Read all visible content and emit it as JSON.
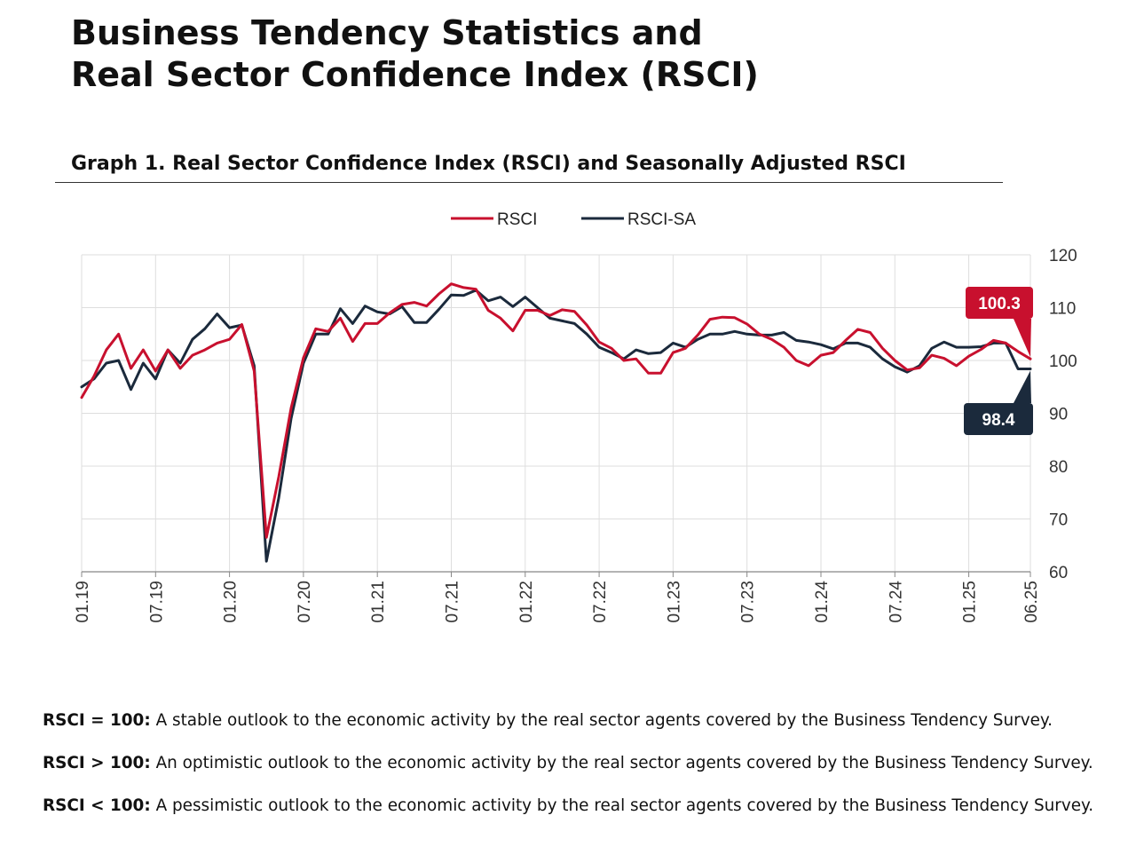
{
  "page": {
    "title_line1": "Business Tendency Statistics and",
    "title_line2": "Real Sector Confidence Index (RSCI)",
    "graph_title": "Graph 1. Real Sector Confidence Index (RSCI) and Seasonally Adjusted RSCI"
  },
  "notes": [
    {
      "label": "RSCI = 100:",
      "text": " A stable outlook to the economic activity by the real sector agents covered by the Business Tendency Survey."
    },
    {
      "label": "RSCI > 100:",
      "text": " An optimistic outlook to the economic activity by the real sector agents covered by the Business Tendency Survey."
    },
    {
      "label": "RSCI < 100:",
      "text": " A pessimistic outlook to the economic activity by the real sector agents covered by the Business Tendency Survey."
    }
  ],
  "colors": {
    "rsci": "#c8102e",
    "rsci_sa": "#1b2a3c",
    "grid": "#dedede",
    "axis": "#888888"
  },
  "chart_data": {
    "type": "line",
    "title": "Graph 1. Real Sector Confidence Index (RSCI) and Seasonally Adjusted RSCI",
    "xlabel": "",
    "ylabel": "",
    "x_start": "01.19",
    "x_end": "06.25",
    "n_points": 78,
    "x_tick_labels": [
      "01.19",
      "07.19",
      "01.20",
      "07.20",
      "01.21",
      "07.21",
      "01.22",
      "07.22",
      "01.23",
      "07.23",
      "01.24",
      "07.24",
      "01.25",
      "06.25"
    ],
    "x_tick_index": [
      0,
      6,
      12,
      18,
      24,
      30,
      36,
      42,
      48,
      54,
      60,
      66,
      72,
      77
    ],
    "ylim": [
      60,
      120
    ],
    "y_ticks": [
      60,
      70,
      80,
      90,
      100,
      110,
      120
    ],
    "grid": true,
    "legend_position": "top-center",
    "series": [
      {
        "name": "RSCI",
        "color": "#c8102e",
        "values": [
          93.0,
          97.0,
          102.0,
          105.0,
          98.5,
          102.0,
          98.0,
          102.0,
          98.5,
          101.0,
          102.0,
          103.3,
          104.0,
          106.8,
          98.0,
          66.5,
          78.0,
          91.0,
          100.5,
          106.0,
          105.5,
          108.0,
          103.6,
          107.0,
          107.0,
          109.0,
          110.6,
          111.0,
          110.3,
          112.6,
          114.5,
          113.8,
          113.5,
          109.5,
          108.0,
          105.6,
          109.5,
          109.5,
          108.5,
          109.6,
          109.3,
          106.7,
          103.5,
          102.3,
          100.0,
          100.3,
          97.6,
          97.6,
          101.5,
          102.3,
          104.8,
          107.8,
          108.2,
          108.1,
          106.9,
          105.0,
          104.0,
          102.5,
          100.0,
          99.0,
          101.0,
          101.5,
          103.8,
          105.9,
          105.3,
          102.3,
          100.0,
          98.2,
          98.6,
          101.0,
          100.4,
          99.0,
          100.8,
          102.1,
          103.8,
          103.3,
          101.7,
          100.3
        ]
      },
      {
        "name": "RSCI-SA",
        "color": "#1b2a3c",
        "values": [
          95.0,
          96.5,
          99.5,
          100.0,
          94.5,
          99.5,
          96.5,
          102.0,
          99.5,
          104.0,
          106.0,
          108.8,
          106.2,
          106.7,
          99.0,
          62.0,
          74.0,
          89.0,
          99.5,
          105.0,
          105.0,
          109.8,
          107.0,
          110.3,
          109.2,
          108.8,
          110.2,
          107.2,
          107.2,
          109.7,
          112.4,
          112.3,
          113.3,
          111.3,
          112.0,
          110.2,
          112.0,
          110.0,
          108.0,
          107.5,
          107.0,
          105.0,
          102.5,
          101.5,
          100.3,
          102.0,
          101.3,
          101.5,
          103.3,
          102.5,
          104.0,
          105.0,
          105.0,
          105.5,
          105.0,
          104.8,
          104.8,
          105.3,
          103.8,
          103.5,
          103.0,
          102.2,
          103.3,
          103.3,
          102.5,
          100.3,
          98.8,
          97.8,
          99.0,
          102.3,
          103.5,
          102.5,
          102.5,
          102.6,
          103.3,
          103.3,
          98.4,
          98.4
        ]
      }
    ],
    "end_labels": [
      {
        "series": "RSCI",
        "text": "100.3"
      },
      {
        "series": "RSCI-SA",
        "text": "98.4"
      }
    ]
  }
}
